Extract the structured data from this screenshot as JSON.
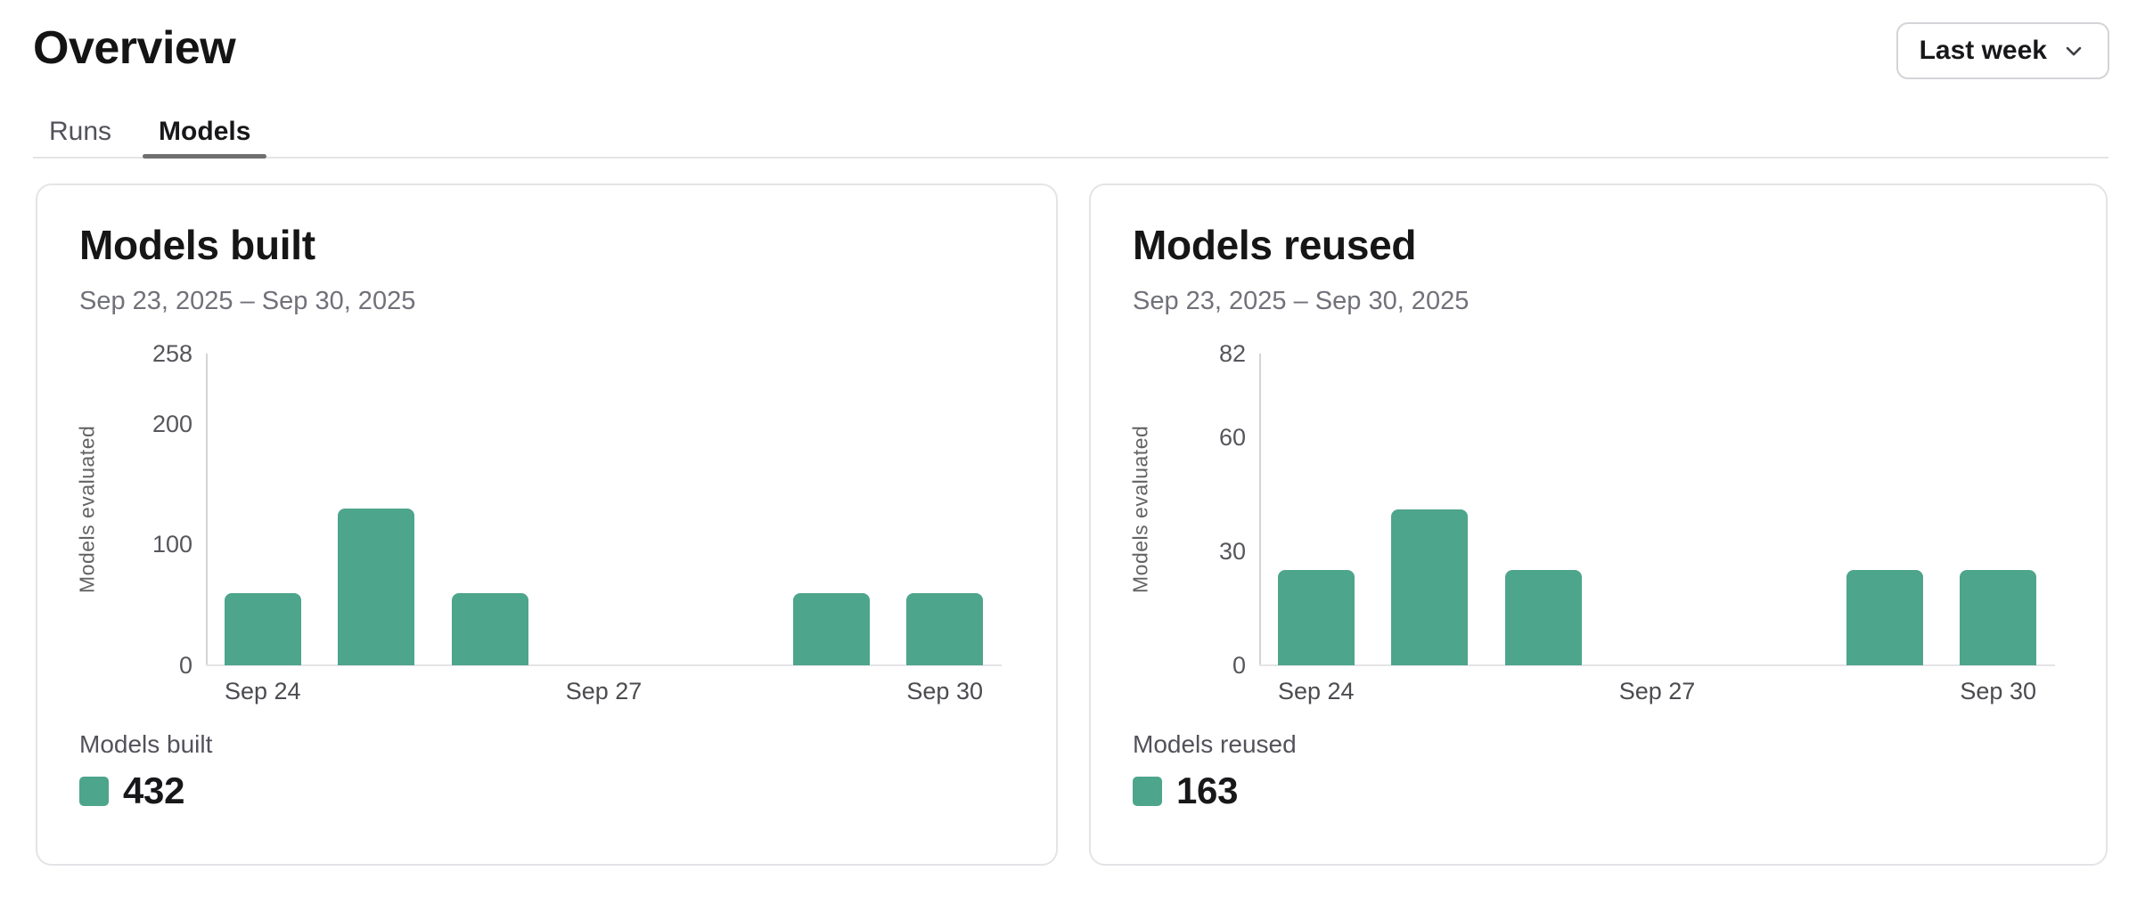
{
  "page": {
    "title": "Overview"
  },
  "range_selector": {
    "value": "Last week"
  },
  "tabs": [
    {
      "label": "Runs",
      "active": false
    },
    {
      "label": "Models",
      "active": true
    }
  ],
  "colors": {
    "accent": "#4da58b",
    "text_primary": "#18181b",
    "text_secondary": "#71717a",
    "axis_line": "#d4d4d8",
    "card_border": "#e4e4e7"
  },
  "cards": [
    {
      "title": "Models built",
      "date_range": "Sep 23, 2025 – Sep 30, 2025",
      "legend_label": "Models built",
      "legend_value": "432"
    },
    {
      "title": "Models reused",
      "date_range": "Sep 23, 2025 – Sep 30, 2025",
      "legend_label": "Models reused",
      "legend_value": "163"
    }
  ],
  "chart_data": [
    {
      "type": "bar",
      "title": "Models built",
      "subtitle": "Sep 23, 2025 – Sep 30, 2025",
      "xlabel": "",
      "ylabel": "Models evaluated",
      "categories": [
        "Sep 24",
        "Sep 25",
        "Sep 26",
        "Sep 27",
        "Sep 28",
        "Sep 29",
        "Sep 30"
      ],
      "values": [
        60,
        130,
        60,
        0,
        0,
        60,
        60
      ],
      "ylim": [
        0,
        258
      ],
      "y_ticks": [
        0,
        100,
        200,
        258
      ],
      "x_tick_labels": [
        "Sep 24",
        "Sep 27",
        "Sep 30"
      ],
      "x_tick_positions": [
        0,
        3,
        6
      ],
      "grid": false,
      "bar_color": "#4da58b",
      "legend": {
        "position": "bottom-left",
        "label": "Models built",
        "total": 432
      }
    },
    {
      "type": "bar",
      "title": "Models reused",
      "subtitle": "Sep 23, 2025 – Sep 30, 2025",
      "xlabel": "",
      "ylabel": "Models evaluated",
      "categories": [
        "Sep 24",
        "Sep 25",
        "Sep 26",
        "Sep 27",
        "Sep 28",
        "Sep 29",
        "Sep 30"
      ],
      "values": [
        25,
        41,
        25,
        0,
        0,
        25,
        25
      ],
      "ylim": [
        0,
        82
      ],
      "y_ticks": [
        0,
        30,
        60,
        82
      ],
      "x_tick_labels": [
        "Sep 24",
        "Sep 27",
        "Sep 30"
      ],
      "x_tick_positions": [
        0,
        3,
        6
      ],
      "grid": false,
      "bar_color": "#4da58b",
      "legend": {
        "position": "bottom-left",
        "label": "Models reused",
        "total": 163
      }
    }
  ]
}
